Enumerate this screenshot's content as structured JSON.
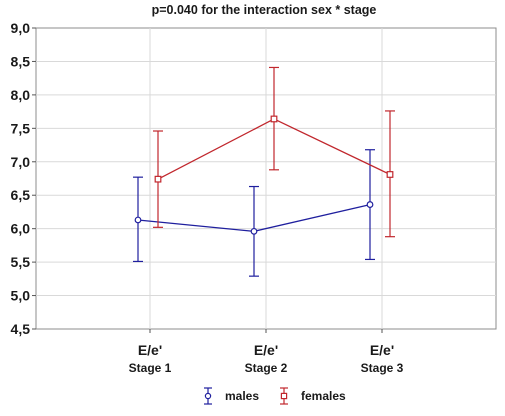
{
  "chart_data": {
    "type": "line",
    "title": "p=0.040 for the interaction sex * stage",
    "categories": [
      {
        "main": "E/e'",
        "sub": "Stage 1"
      },
      {
        "main": "E/e'",
        "sub": "Stage 2"
      },
      {
        "main": "E/e'",
        "sub": "Stage 3"
      }
    ],
    "ylim": [
      4.5,
      9.0
    ],
    "yticks": [
      "9,0",
      "8,5",
      "8,0",
      "7,5",
      "7,0",
      "6,5",
      "6,0",
      "5,5",
      "5,0",
      "4,5"
    ],
    "ytick_values": [
      9.0,
      8.5,
      8.0,
      7.5,
      7.0,
      6.5,
      6.0,
      5.5,
      5.0,
      4.5
    ],
    "grid": true,
    "legend_position": "bottom-center",
    "series": [
      {
        "name": "males",
        "marker": "circle",
        "color": "#1f1f9e",
        "values": [
          6.13,
          5.96,
          6.36
        ],
        "lower": [
          5.51,
          5.29,
          5.54
        ],
        "upper": [
          6.77,
          6.63,
          7.18
        ]
      },
      {
        "name": "females",
        "marker": "square",
        "color": "#c1272d",
        "values": [
          6.74,
          7.64,
          6.81
        ],
        "lower": [
          6.02,
          6.88,
          5.88
        ],
        "upper": [
          7.46,
          8.41,
          7.76
        ]
      }
    ]
  }
}
